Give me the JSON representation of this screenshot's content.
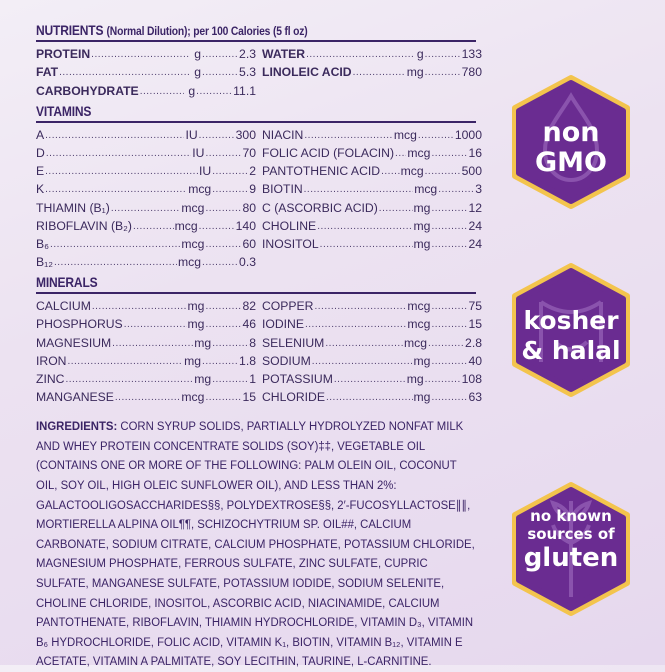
{
  "nutrients": {
    "title": "NUTRIENTS",
    "subtitle": "(Normal Dilution); per 100 Calories (5 fl oz)",
    "left": [
      {
        "name": "PROTEIN",
        "unit": "g",
        "value": "2.3"
      },
      {
        "name": "FAT",
        "unit": "g",
        "value": "5.3"
      },
      {
        "name": "CARBOHYDRATE",
        "unit": "g",
        "value": "11.1"
      }
    ],
    "right": [
      {
        "name": "WATER",
        "unit": "g",
        "value": "133"
      },
      {
        "name": "LINOLEIC ACID",
        "unit": "mg",
        "value": "780"
      }
    ]
  },
  "vitamins": {
    "title": "VITAMINS",
    "left": [
      {
        "name": "A",
        "unit": "IU",
        "value": "300"
      },
      {
        "name": "D",
        "unit": "IU",
        "value": "70"
      },
      {
        "name": "E",
        "unit": "IU",
        "value": "2"
      },
      {
        "name": "K",
        "unit": "mcg",
        "value": "9"
      },
      {
        "name": "THIAMIN (B₁)",
        "unit": "mcg",
        "value": "80"
      },
      {
        "name": "RIBOFLAVIN (B₂)",
        "unit": "mcg",
        "value": "140"
      },
      {
        "name": "B₆",
        "unit": "mcg",
        "value": "60"
      },
      {
        "name": "B₁₂",
        "unit": "mcg",
        "value": "0.3"
      }
    ],
    "right": [
      {
        "name": "NIACIN",
        "unit": "mcg",
        "value": "1000"
      },
      {
        "name": "FOLIC ACID (FOLACIN)",
        "unit": "mcg",
        "value": "16"
      },
      {
        "name": "PANTOTHENIC ACID",
        "unit": "mcg",
        "value": "500"
      },
      {
        "name": "BIOTIN",
        "unit": "mcg",
        "value": "3"
      },
      {
        "name": "C (ASCORBIC ACID)",
        "unit": "mg",
        "value": "12"
      },
      {
        "name": "CHOLINE",
        "unit": "mg",
        "value": "24"
      },
      {
        "name": "INOSITOL",
        "unit": "mg",
        "value": "24"
      }
    ]
  },
  "minerals": {
    "title": "MINERALS",
    "left": [
      {
        "name": "CALCIUM",
        "unit": "mg",
        "value": "82"
      },
      {
        "name": "PHOSPHORUS",
        "unit": "mg",
        "value": "46"
      },
      {
        "name": "MAGNESIUM",
        "unit": "mg",
        "value": "8"
      },
      {
        "name": "IRON",
        "unit": "mg",
        "value": "1.8"
      },
      {
        "name": "ZINC",
        "unit": "mg",
        "value": "1"
      },
      {
        "name": "MANGANESE",
        "unit": "mcg",
        "value": "15"
      }
    ],
    "right": [
      {
        "name": "COPPER",
        "unit": "mcg",
        "value": "75"
      },
      {
        "name": "IODINE",
        "unit": "mcg",
        "value": "15"
      },
      {
        "name": "SELENIUM",
        "unit": "mcg",
        "value": "2.8"
      },
      {
        "name": "SODIUM",
        "unit": "mg",
        "value": "40"
      },
      {
        "name": "POTASSIUM",
        "unit": "mg",
        "value": "108"
      },
      {
        "name": "CHLORIDE",
        "unit": "mg",
        "value": "63"
      }
    ]
  },
  "ingredients": {
    "label": "INGREDIENTS:",
    "text": "CORN SYRUP SOLIDS, PARTIALLY HYDROLYZED NONFAT MILK AND WHEY PROTEIN CONCENTRATE SOLIDS (SOY)‡‡, VEGETABLE OIL (CONTAINS ONE OR MORE OF THE FOLLOWING: PALM OLEIN OIL, COCONUT OIL, SOY OIL, HIGH OLEIC SUNFLOWER OIL), AND LESS THAN 2%: GALACTOOLIGOSACCHARIDES§§, POLYDEXTROSE§§, 2′-FUCOSYLLACTOSE∥∥, MORTIERELLA ALPINA OIL¶¶, SCHIZOCHYTRIUM SP. OIL##, CALCIUM CARBONATE, SODIUM CITRATE, CALCIUM PHOSPHATE, POTASSIUM CHLORIDE, MAGNESIUM PHOSPHATE, FERROUS SULFATE, ZINC SULFATE, CUPRIC SULFATE, MANGANESE SULFATE, POTASSIUM IODIDE, SODIUM SELENITE, CHOLINE CHLORIDE, INOSITOL, ASCORBIC ACID, NIACINAMIDE, CALCIUM PANTOTHENATE, RIBOFLAVIN, THIAMIN HYDROCHLORIDE, VITAMIN D₃, VITAMIN B₆ HYDROCHLORIDE, FOLIC ACID, VITAMIN K₁, BIOTIN, VITAMIN B₁₂, VITAMIN E ACETATE, VITAMIN A PALMITATE, SOY LECITHIN, TAURINE, L-CARNITINE."
  },
  "badges": [
    {
      "line1": "non",
      "line2": "GMO",
      "icon": "drop-icon"
    },
    {
      "line1": "kosher",
      "line2": "& halal",
      "icon": "symbol-icon"
    },
    {
      "line1": "no known",
      "line2": "sources of",
      "line3": "gluten",
      "icon": "wheat-icon"
    }
  ],
  "colors": {
    "accent": "#3b2466",
    "badge_fill": "#6a2c91",
    "badge_ring": "#f3c44d"
  }
}
